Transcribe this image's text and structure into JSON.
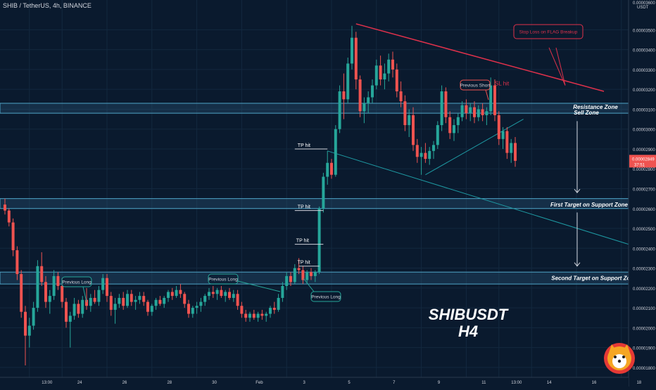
{
  "header": {
    "symbol_line": "SHIB / TetherUS, 4h, BINANCE"
  },
  "watermark": {
    "line1": "SHIBUSDT",
    "line2": "H4",
    "logo_icon": "shiba-inu-coin-logo"
  },
  "price_axis": {
    "currency": "USDT",
    "last_price": "0.00002849",
    "countdown": "37:51"
  },
  "colors": {
    "background": "#0a1a2e",
    "bull": "#26a69a",
    "bear": "#ef5350",
    "resistance_line": "#e0314b",
    "channel_line": "#1e9aa3",
    "zone_fill": "#2a5a78",
    "zone_border": "#4fa5c8",
    "text": "#d1d4dc"
  },
  "chart_data": {
    "type": "candlestick",
    "timeframe": "4h",
    "ylim": [
      1.75e-05,
      3.65e-05
    ],
    "y_tick_values": [
      1.8e-05,
      1.9e-05,
      2e-05,
      2.1e-05,
      2.2e-05,
      2.3e-05,
      2.4e-05,
      2.5e-05,
      2.6e-05,
      2.7e-05,
      2.8e-05,
      2.9e-05,
      3e-05,
      3.1e-05,
      3.2e-05,
      3.3e-05,
      3.4e-05,
      3.5e-05
    ],
    "y_tick_labels": [
      "0.00001800",
      "0.00001900",
      "0.00002000",
      "0.00002100",
      "0.00002200",
      "0.00002300",
      "0.00002400",
      "0.00002500",
      "0.00002600",
      "0.00002700",
      "0.00002800",
      "0.00002900",
      "0.00003000",
      "0.00003100",
      "0.00003200",
      "0.00003300",
      "0.00003400",
      "0.00003500"
    ],
    "top_tick_label": "0.00003600",
    "x_labels": [
      {
        "label": "13:00",
        "bar": 6
      },
      {
        "label": "24",
        "bar": 14
      },
      {
        "label": "26",
        "bar": 25
      },
      {
        "label": "28",
        "bar": 36
      },
      {
        "label": "30",
        "bar": 47
      },
      {
        "label": "Feb",
        "bar": 58
      },
      {
        "label": "3",
        "bar": 69
      },
      {
        "label": "5",
        "bar": 80
      },
      {
        "label": "7",
        "bar": 91
      },
      {
        "label": "9",
        "bar": 102
      },
      {
        "label": "11",
        "bar": 113
      },
      {
        "label": "13:00",
        "bar": 121
      },
      {
        "label": "14",
        "bar": 129
      },
      {
        "label": "16",
        "bar": 140
      },
      {
        "label": "18",
        "bar": 151
      },
      {
        "label": "13:00",
        "bar": 158
      },
      {
        "label": "21",
        "bar": 166
      }
    ],
    "candles": [
      [
        2.62e-05,
        2.65e-05,
        2.57e-05,
        2.59e-05
      ],
      [
        2.59e-05,
        2.6e-05,
        2.51e-05,
        2.53e-05
      ],
      [
        2.53e-05,
        2.55e-05,
        2.36e-05,
        2.39e-05
      ],
      [
        2.39e-05,
        2.41e-05,
        2.24e-05,
        2.27e-05
      ],
      [
        2.27e-05,
        2.29e-05,
        2.05e-05,
        2.08e-05
      ],
      [
        2.08e-05,
        2.11e-05,
        1.81e-05,
        1.96e-05
      ],
      [
        1.96e-05,
        2.05e-05,
        1.9e-05,
        2.01e-05
      ],
      [
        2.01e-05,
        2.13e-05,
        1.99e-05,
        2.1e-05
      ],
      [
        2.1e-05,
        2.34e-05,
        2.08e-05,
        2.31e-05
      ],
      [
        2.31e-05,
        2.38e-05,
        2.21e-05,
        2.23e-05
      ],
      [
        2.23e-05,
        2.26e-05,
        2.1e-05,
        2.13e-05
      ],
      [
        2.13e-05,
        2.19e-05,
        2.07e-05,
        2.16e-05
      ],
      [
        2.16e-05,
        2.29e-05,
        2.14e-05,
        2.26e-05
      ],
      [
        2.26e-05,
        2.28e-05,
        2.19e-05,
        2.21e-05
      ],
      [
        2.21e-05,
        2.25e-05,
        2.1e-05,
        2.13e-05
      ],
      [
        2.13e-05,
        2.15e-05,
        2e-05,
        2.03e-05
      ],
      [
        2.03e-05,
        2.08e-05,
        1.9e-05,
        2.06e-05
      ],
      [
        2.06e-05,
        2.15e-05,
        2.04e-05,
        2.12e-05
      ],
      [
        2.12e-05,
        2.14e-05,
        2.05e-05,
        2.07e-05
      ],
      [
        2.07e-05,
        2.16e-05,
        2.05e-05,
        2.14e-05
      ],
      [
        2.14e-05,
        2.2e-05,
        2.09e-05,
        2.11e-05
      ],
      [
        2.11e-05,
        2.17e-05,
        2.08e-05,
        2.15e-05
      ],
      [
        2.15e-05,
        2.19e-05,
        2.12e-05,
        2.13e-05
      ],
      [
        2.13e-05,
        2.21e-05,
        2.11e-05,
        2.19e-05
      ],
      [
        2.19e-05,
        2.27e-05,
        2.17e-05,
        2.25e-05
      ],
      [
        2.25e-05,
        2.27e-05,
        2.13e-05,
        2.16e-05
      ],
      [
        2.16e-05,
        2.18e-05,
        2.06e-05,
        2.09e-05
      ],
      [
        2.09e-05,
        2.15e-05,
        2.02e-05,
        2.12e-05
      ],
      [
        2.12e-05,
        2.17e-05,
        2.1e-05,
        2.15e-05
      ],
      [
        2.15e-05,
        2.18e-05,
        2.09e-05,
        2.11e-05
      ],
      [
        2.11e-05,
        2.19e-05,
        2.1e-05,
        2.17e-05
      ],
      [
        2.17e-05,
        2.19e-05,
        2.11e-05,
        2.13e-05
      ],
      [
        2.13e-05,
        2.16e-05,
        2.09e-05,
        2.14e-05
      ],
      [
        2.14e-05,
        2.18e-05,
        2.12e-05,
        2.16e-05
      ],
      [
        2.16e-05,
        2.18e-05,
        2.11e-05,
        2.13e-05
      ],
      [
        2.13e-05,
        2.14e-05,
        2.06e-05,
        2.08e-05
      ],
      [
        2.08e-05,
        2.12e-05,
        2.06e-05,
        2.11e-05
      ],
      [
        2.11e-05,
        2.15e-05,
        2.09e-05,
        2.14e-05
      ],
      [
        2.14e-05,
        2.16e-05,
        2.11e-05,
        2.12e-05
      ],
      [
        2.12e-05,
        2.16e-05,
        2.1e-05,
        2.15e-05
      ],
      [
        2.15e-05,
        2.19e-05,
        2.13e-05,
        2.18e-05
      ],
      [
        2.18e-05,
        2.2e-05,
        2.14e-05,
        2.16e-05
      ],
      [
        2.16e-05,
        2.21e-05,
        2.15e-05,
        2.19e-05
      ],
      [
        2.19e-05,
        2.22e-05,
        2.15e-05,
        2.17e-05
      ],
      [
        2.17e-05,
        2.18e-05,
        2.1e-05,
        2.12e-05
      ],
      [
        2.12e-05,
        2.14e-05,
        2.05e-05,
        2.07e-05
      ],
      [
        2.07e-05,
        2.11e-05,
        2.05e-05,
        2.1e-05
      ],
      [
        2.1e-05,
        2.13e-05,
        2.07e-05,
        2.11e-05
      ],
      [
        2.11e-05,
        2.15e-05,
        2.08e-05,
        2.13e-05
      ],
      [
        2.13e-05,
        2.17e-05,
        2.11e-05,
        2.16e-05
      ],
      [
        2.16e-05,
        2.2e-05,
        2.14e-05,
        2.18e-05
      ],
      [
        2.18e-05,
        2.21e-05,
        2.15e-05,
        2.17e-05
      ],
      [
        2.17e-05,
        2.2e-05,
        2.14e-05,
        2.19e-05
      ],
      [
        2.19e-05,
        2.21e-05,
        2.15e-05,
        2.16e-05
      ],
      [
        2.16e-05,
        2.19e-05,
        2.13e-05,
        2.18e-05
      ],
      [
        2.18e-05,
        2.2e-05,
        2.14e-05,
        2.15e-05
      ],
      [
        2.15e-05,
        2.19e-05,
        2.13e-05,
        2.17e-05
      ],
      [
        2.17e-05,
        2.19e-05,
        2.09e-05,
        2.11e-05
      ],
      [
        2.11e-05,
        2.13e-05,
        2.05e-05,
        2.07e-05
      ],
      [
        2.07e-05,
        2.09e-05,
        2.03e-05,
        2.05e-05
      ],
      [
        2.05e-05,
        2.08e-05,
        2.03e-05,
        2.07e-05
      ],
      [
        2.07e-05,
        2.09e-05,
        2.04e-05,
        2.05e-05
      ],
      [
        2.05e-05,
        2.08e-05,
        2.03e-05,
        2.07e-05
      ],
      [
        2.07e-05,
        2.09e-05,
        2.04e-05,
        2.06e-05
      ],
      [
        2.06e-05,
        2.08e-05,
        2.03e-05,
        2.07e-05
      ],
      [
        2.07e-05,
        2.11e-05,
        2.05e-05,
        2.1e-05
      ],
      [
        2.1e-05,
        2.13e-05,
        2.07e-05,
        2.09e-05
      ],
      [
        2.09e-05,
        2.17e-05,
        2.08e-05,
        2.15e-05
      ],
      [
        2.15e-05,
        2.23e-05,
        2.13e-05,
        2.21e-05
      ],
      [
        2.21e-05,
        2.28e-05,
        2.19e-05,
        2.26e-05
      ],
      [
        2.26e-05,
        2.28e-05,
        2.21e-05,
        2.23e-05
      ],
      [
        2.23e-05,
        2.32e-05,
        2.22e-05,
        2.3e-05
      ],
      [
        2.3e-05,
        2.35e-05,
        2.27e-05,
        2.29e-05
      ],
      [
        2.29e-05,
        2.31e-05,
        2.22e-05,
        2.24e-05
      ],
      [
        2.24e-05,
        2.29e-05,
        2.22e-05,
        2.28e-05
      ],
      [
        2.28e-05,
        2.3e-05,
        2.24e-05,
        2.26e-05
      ],
      [
        2.26e-05,
        2.29e-05,
        2.23e-05,
        2.28e-05
      ],
      [
        2.28e-05,
        2.61e-05,
        2.27e-05,
        2.6e-05
      ],
      [
        2.6e-05,
        2.78e-05,
        2.58e-05,
        2.76e-05
      ],
      [
        2.76e-05,
        2.89e-05,
        2.72e-05,
        2.83e-05
      ],
      [
        2.83e-05,
        2.85e-05,
        2.75e-05,
        2.77e-05
      ],
      [
        2.77e-05,
        3.02e-05,
        2.76e-05,
        3e-05
      ],
      [
        3e-05,
        3.22e-05,
        2.98e-05,
        3.19e-05
      ],
      [
        3.19e-05,
        3.28e-05,
        3.05e-05,
        3.15e-05
      ],
      [
        3.15e-05,
        3.36e-05,
        3.13e-05,
        3.33e-05
      ],
      [
        3.33e-05,
        3.52e-05,
        3.3e-05,
        3.46e-05
      ],
      [
        3.46e-05,
        3.49e-05,
        3.2e-05,
        3.25e-05
      ],
      [
        3.25e-05,
        3.27e-05,
        3.06e-05,
        3.09e-05
      ],
      [
        3.09e-05,
        3.16e-05,
        3.03e-05,
        3.13e-05
      ],
      [
        3.13e-05,
        3.19e-05,
        3.08e-05,
        3.16e-05
      ],
      [
        3.16e-05,
        3.25e-05,
        3.13e-05,
        3.22e-05
      ],
      [
        3.22e-05,
        3.35e-05,
        3.2e-05,
        3.32e-05
      ],
      [
        3.32e-05,
        3.37e-05,
        3.22e-05,
        3.25e-05
      ],
      [
        3.25e-05,
        3.33e-05,
        3.2e-05,
        3.28e-05
      ],
      [
        3.28e-05,
        3.38e-05,
        3.24e-05,
        3.35e-05
      ],
      [
        3.35e-05,
        3.39e-05,
        3.26e-05,
        3.3e-05
      ],
      [
        3.3e-05,
        3.33e-05,
        3.16e-05,
        3.19e-05
      ],
      [
        3.19e-05,
        3.24e-05,
        3.11e-05,
        3.14e-05
      ],
      [
        3.14e-05,
        3.17e-05,
        2.99e-05,
        3.02e-05
      ],
      [
        3.02e-05,
        3.1e-05,
        2.96e-05,
        3.07e-05
      ],
      [
        3.07e-05,
        3.11e-05,
        2.89e-05,
        2.92e-05
      ],
      [
        2.92e-05,
        2.95e-05,
        2.83e-05,
        2.86e-05
      ],
      [
        2.86e-05,
        2.91e-05,
        2.77e-05,
        2.88e-05
      ],
      [
        2.88e-05,
        2.93e-05,
        2.83e-05,
        2.85e-05
      ],
      [
        2.85e-05,
        2.91e-05,
        2.82e-05,
        2.89e-05
      ],
      [
        2.89e-05,
        2.94e-05,
        2.85e-05,
        2.92e-05
      ],
      [
        2.92e-05,
        3.04e-05,
        2.9e-05,
        3.02e-05
      ],
      [
        3.02e-05,
        3.22e-05,
        2.99e-05,
        3.19e-05
      ],
      [
        3.19e-05,
        3.21e-05,
        3.03e-05,
        3.06e-05
      ],
      [
        3.06e-05,
        3.09e-05,
        2.95e-05,
        2.98e-05
      ],
      [
        2.98e-05,
        3.05e-05,
        2.94e-05,
        3.02e-05
      ],
      [
        3.02e-05,
        3.08e-05,
        2.98e-05,
        3.06e-05
      ],
      [
        3.06e-05,
        3.14e-05,
        3.04e-05,
        3.12e-05
      ],
      [
        3.12e-05,
        3.15e-05,
        3.05e-05,
        3.08e-05
      ],
      [
        3.08e-05,
        3.13e-05,
        3.04e-05,
        3.11e-05
      ],
      [
        3.11e-05,
        3.14e-05,
        3.03e-05,
        3.06e-05
      ],
      [
        3.06e-05,
        3.12e-05,
        3.04e-05,
        3.1e-05
      ],
      [
        3.1e-05,
        3.13e-05,
        3.04e-05,
        3.07e-05
      ],
      [
        3.07e-05,
        3.11e-05,
        3.02e-05,
        3.09e-05
      ],
      [
        3.09e-05,
        3.26e-05,
        3.07e-05,
        3.22e-05
      ],
      [
        3.22e-05,
        3.25e-05,
        3.04e-05,
        3.07e-05
      ],
      [
        3.07e-05,
        3.09e-05,
        2.92e-05,
        2.95e-05
      ],
      [
        2.95e-05,
        3.01e-05,
        2.9e-05,
        2.99e-05
      ],
      [
        2.99e-05,
        3.01e-05,
        2.85e-05,
        2.88e-05
      ],
      [
        2.88e-05,
        2.95e-05,
        2.83e-05,
        2.93e-05
      ],
      [
        2.93e-05,
        2.96e-05,
        2.81e-05,
        2.84e-05
      ]
    ]
  },
  "annotations": {
    "zones": [
      {
        "name": "resistance-zone",
        "top": 3.13e-05,
        "bottom": 3.08e-05
      },
      {
        "name": "first-target-zone",
        "top": 2.65e-05,
        "bottom": 2.6e-05
      },
      {
        "name": "second-target-zone",
        "top": 2.28e-05,
        "bottom": 2.22e-05
      }
    ],
    "zone_labels": {
      "resistance_line1": "Resistance Zone",
      "resistance_line2": "Sell Zone",
      "first_target": "First Target on Support Zone",
      "second_target": "Second Target on Support Zone"
    },
    "tp_hit": [
      "TP hit",
      "TP hit",
      "TP hit",
      "TP hit"
    ],
    "previous_long": [
      "Previous Long",
      "Previous Long",
      "Previous Long"
    ],
    "previous_short": "Previous Short",
    "sl_hit": "SL hit",
    "stop_loss_box": "Stop Loss on FLAG Breakup"
  }
}
